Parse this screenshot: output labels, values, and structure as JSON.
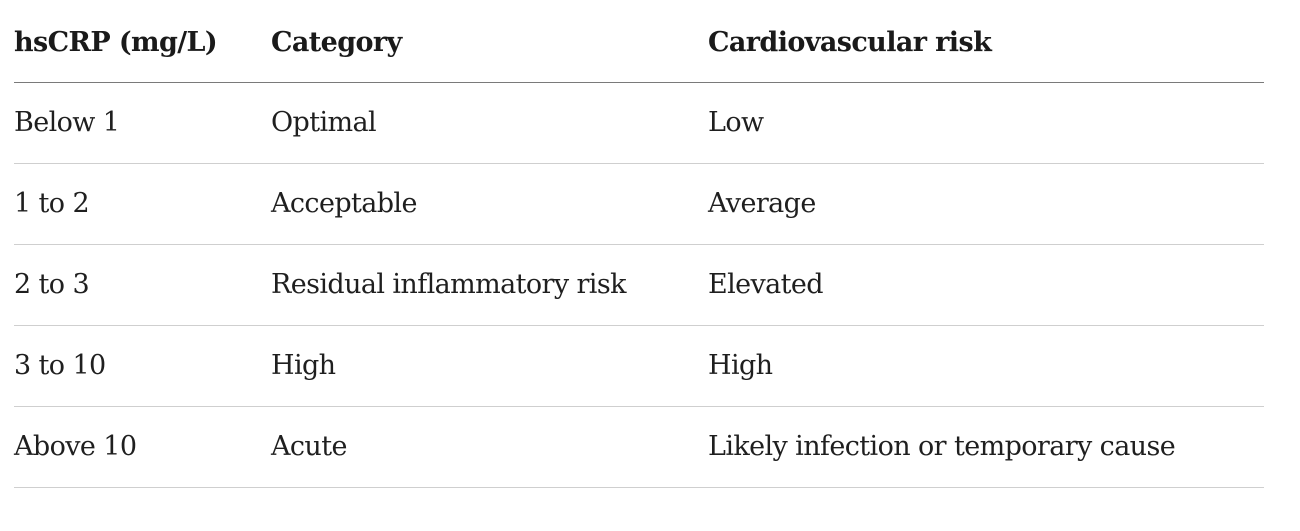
{
  "table": {
    "headers": [
      "hsCRP (mg/L)",
      "Category",
      "Cardiovascular risk"
    ],
    "rows": [
      [
        "Below 1",
        "Optimal",
        "Low"
      ],
      [
        "1 to 2",
        "Acceptable",
        "Average"
      ],
      [
        "2 to 3",
        "Residual inflammatory risk",
        "Elevated"
      ],
      [
        "3 to 10",
        "High",
        "High"
      ],
      [
        "Above 10",
        "Acute",
        "Likely infection or temporary cause"
      ]
    ]
  }
}
